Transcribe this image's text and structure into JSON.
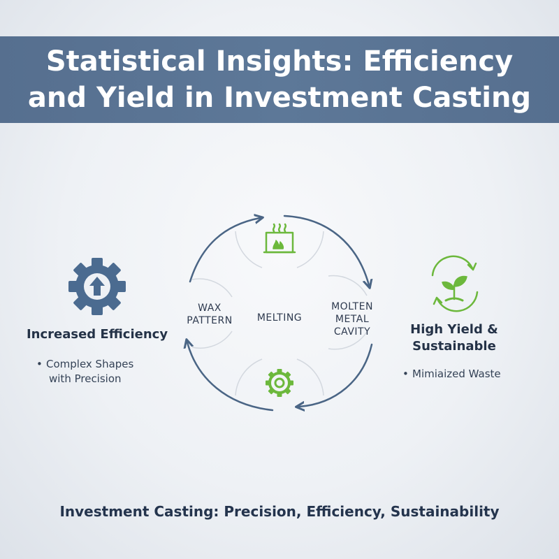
{
  "title": {
    "line1": "Statistical Insights: Efficiency",
    "line2": "and Yield in Investment Casting"
  },
  "cycle": {
    "stages": {
      "left": [
        "WAX",
        "PATTERN"
      ],
      "center": "MELTING",
      "right": [
        "MOLTEN",
        "METAL",
        "CAVITY"
      ]
    },
    "icons": {
      "top": "furnace-icon",
      "bottom": "gear-icon"
    }
  },
  "left_panel": {
    "icon": "gear-up-arrow-icon",
    "heading": "Increased Efficiency",
    "bullet_marker": "•",
    "bullet_line1": "Complex Shapes",
    "bullet_line2": "with Precision"
  },
  "right_panel": {
    "icon": "sprout-recycle-icon",
    "heading_line1": "High Yield &",
    "heading_line2": "Sustainable",
    "bullet_marker": "•",
    "bullet": "Mimiaized Waste"
  },
  "footer": "Investment Casting: Precision, Efficiency, Sustainability",
  "colors": {
    "banner": "#5a7392",
    "navy_text": "#243247",
    "arrow": "#4a6585",
    "green": "#6cb83c",
    "gear_blue": "#4b6b90"
  }
}
